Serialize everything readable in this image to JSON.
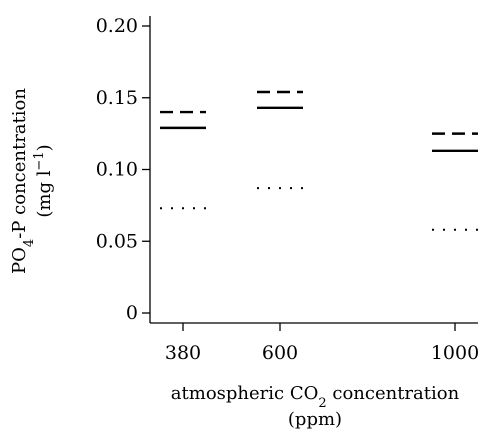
{
  "chart_data": {
    "type": "scatter",
    "x_categories": [
      "380",
      "600",
      "1000"
    ],
    "y_ticks": [
      "0",
      "0.05",
      "0.10",
      "0.15",
      "0.20"
    ],
    "ylim": [
      0,
      0.2
    ],
    "xlabel": {
      "line1_prefix": "atmospheric CO",
      "line1_sub": "2",
      "line1_suffix": " concentration",
      "line2": "(ppm)"
    },
    "ylabel": {
      "line1_prefix": "PO",
      "line1_sub": "4",
      "line1_suffix": "-P concentration",
      "line2_prefix": "(mg l",
      "line2_sup": "−1",
      "line2_suffix": ")"
    },
    "series": [
      {
        "style": "dashed",
        "values": [
          0.14,
          0.154,
          0.125
        ]
      },
      {
        "style": "solid",
        "values": [
          0.129,
          0.143,
          0.113
        ]
      },
      {
        "style": "dotted",
        "values": [
          0.073,
          0.087,
          0.058
        ]
      }
    ],
    "grid": false
  }
}
